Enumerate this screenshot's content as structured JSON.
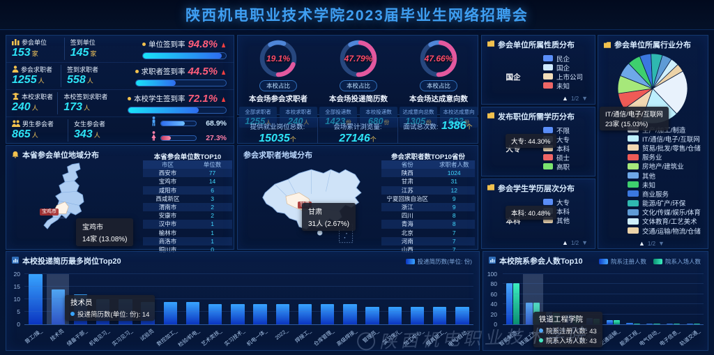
{
  "header": {
    "title": "陕西机电职业技术学院2023届毕业生网络招聘会"
  },
  "watermark": "陕西机电职业技术学院",
  "accent_colors": {
    "number_cyan": "#2de4f6",
    "unit_yellow": "#eec35a",
    "rate_pink": "#ff5d7a",
    "title_blue": "#3f9ff2"
  },
  "stats": {
    "rows": [
      {
        "icon": "org-icon",
        "label_a": "参会单位",
        "value_a": "153",
        "unit_a": "家",
        "label_b": "签到单位",
        "value_b": "145",
        "unit_b": "家",
        "rate_label": "单位签到率",
        "rate_text": "94.8%",
        "rate_pct": 94.8
      },
      {
        "icon": "person-icon",
        "label_a": "参会求职者",
        "value_a": "1255",
        "unit_a": "人",
        "label_b": "签到求职者",
        "value_b": "558",
        "unit_b": "人",
        "rate_label": "求职者签到率",
        "rate_text": "44.5%",
        "rate_pct": 44.5
      },
      {
        "icon": "graduate-icon",
        "label_a": "本校求职者",
        "value_a": "240",
        "unit_a": "人",
        "label_b": "本校签到求职者",
        "value_b": "173",
        "unit_b": "人",
        "rate_label": "本校学生签到率",
        "rate_text": "72.1%",
        "rate_pct": 72.1
      },
      {
        "icon": "people-icon",
        "label_a": "男生参会者",
        "value_a": "865",
        "unit_a": "人",
        "label_b": "女生参会者",
        "value_b": "343",
        "unit_b": "人",
        "male_text": "68.9%",
        "male_pct": 68.9,
        "female_text": "27.3%",
        "female_pct": 27.3
      }
    ]
  },
  "totals": {
    "items": [
      {
        "label": "提供就业岗位总数:",
        "value": "15035",
        "unit": "个"
      },
      {
        "label": "会场累计浏览量:",
        "value": "27146",
        "unit": "个"
      },
      {
        "label": "面试总次数:",
        "value": "1386",
        "unit": "个"
      }
    ]
  },
  "chart_data": [
    {
      "type": "gauge",
      "pct_text": "19.1%",
      "value": 19.1,
      "badge": "本校占比",
      "title": "本会场参会求职者",
      "cells": [
        {
          "label": "全部求职者",
          "value": "1255",
          "unit": "人"
        },
        {
          "label": "本校求职者",
          "value": "240",
          "unit": "人"
        }
      ]
    },
    {
      "type": "gauge",
      "pct_text": "47.79%",
      "value": 47.79,
      "badge": "本校占比",
      "title": "本会场投递简历数",
      "cells": [
        {
          "label": "全部投递数",
          "value": "1423",
          "unit": "份"
        },
        {
          "label": "本校投递数",
          "value": "680",
          "unit": "份"
        }
      ]
    },
    {
      "type": "gauge",
      "pct_text": "47.66%",
      "value": 47.66,
      "badge": "本校占比",
      "title": "本会场达成意向数",
      "cells": [
        {
          "label": "达成意向总数",
          "value": "1305",
          "unit": "份"
        },
        {
          "label": "本校达成意向",
          "value": "622",
          "unit": "份"
        }
      ]
    },
    {
      "type": "pie",
      "variant": "donut",
      "title": "参会单位所属性质分布",
      "center_label": "国企",
      "legend_position": "right",
      "pager": "1/2",
      "series": [
        {
          "name": "民企",
          "value": 78,
          "color": "#5b8ff9"
        },
        {
          "name": "国企",
          "value": 12,
          "color": "#cfeaff"
        },
        {
          "name": "上市公司",
          "value": 6,
          "color": "#f3ddb8"
        },
        {
          "name": "未知",
          "value": 4,
          "color": "#ee6666"
        }
      ]
    },
    {
      "type": "pie",
      "variant": "donut",
      "title": "发布职位所需学历分布",
      "center_label": "大专",
      "tooltip": "大专: 44.30%",
      "legend_position": "right",
      "series": [
        {
          "name": "不限",
          "value": 24,
          "color": "#5b8ff9"
        },
        {
          "name": "大专",
          "value": 44.3,
          "color": "#c6ecff"
        },
        {
          "name": "本科",
          "value": 21,
          "color": "#f3ddb8"
        },
        {
          "name": "硕士",
          "value": 2,
          "color": "#ee6666"
        },
        {
          "name": "高职",
          "value": 8.7,
          "color": "#7be36e"
        }
      ]
    },
    {
      "type": "pie",
      "variant": "donut",
      "title": "参会学生学历层次分布",
      "center_label": "本科",
      "tooltip": "本科: 40.48%",
      "legend_position": "right",
      "pager": "1/2",
      "series": [
        {
          "name": "大专",
          "value": 42,
          "color": "#5b8ff9"
        },
        {
          "name": "本科",
          "value": 40.48,
          "color": "#cfeaff"
        },
        {
          "name": "其他",
          "value": 17.52,
          "color": "#f3ddb8"
        }
      ]
    },
    {
      "type": "pie",
      "title": "参会单位所属行业分布",
      "units": "家",
      "pager": "1/2",
      "tooltip": {
        "line1": "IT/通信/电子/互联网",
        "line2": "23家 (15.03%)"
      },
      "series": [
        {
          "name": "生产/加工/制造",
          "value": 28,
          "color": "#e8f2fc"
        },
        {
          "name": "IT/通信/电子/互联网",
          "value": 23,
          "color": "#bdeffd"
        },
        {
          "name": "贸易/批发/零售/仓储",
          "value": 13,
          "color": "#f2d8b2"
        },
        {
          "name": "服务业",
          "value": 10,
          "color": "#ef5b56"
        },
        {
          "name": "房地产/建筑业",
          "value": 11,
          "color": "#a6e87a"
        },
        {
          "name": "其他",
          "value": 9,
          "color": "#6ea8e8"
        },
        {
          "name": "未知",
          "value": 8,
          "color": "#3ecf6e"
        },
        {
          "name": "商业服务",
          "value": 7,
          "color": "#3b78e0"
        },
        {
          "name": "能源/矿产/环保",
          "value": 7,
          "color": "#2fb8b0"
        },
        {
          "name": "文化/传媒/娱乐/体育",
          "value": 6,
          "color": "#5e9bd6"
        },
        {
          "name": "文体教育/工艺美术",
          "value": 5,
          "color": "#cfeffc"
        },
        {
          "name": "交通/运输/物流/仓储",
          "value": 5,
          "color": "#ecd3a8"
        }
      ]
    },
    {
      "type": "table",
      "panel_title": "本省参会单位地域分布",
      "table_title": "本省参会单位数TOP10",
      "columns": [
        "市区",
        "单位数"
      ],
      "map_label": "宝鸡市",
      "tooltip": {
        "line1": "宝鸡市",
        "line2": "14家 (13.08%)"
      },
      "rows": [
        [
          "西安市",
          "77"
        ],
        [
          "宝鸡市",
          "14"
        ],
        [
          "咸阳市",
          "6"
        ],
        [
          "西咸新区",
          "3"
        ],
        [
          "渭南市",
          "2"
        ],
        [
          "安康市",
          "2"
        ],
        [
          "汉中市",
          "1"
        ],
        [
          "榆林市",
          "1"
        ],
        [
          "商洛市",
          "1"
        ],
        [
          "铜川市",
          "0"
        ]
      ]
    },
    {
      "type": "table",
      "panel_title": "参会求职者地域分布",
      "table_title": "参会求职者数TOP10省份",
      "columns": [
        "省份",
        "求职者人数"
      ],
      "map_label": "甘肃",
      "tooltip": {
        "line1": "甘肃",
        "line2": "31人 (2.67%)"
      },
      "rows": [
        [
          "陕西",
          "1024"
        ],
        [
          "甘肃",
          "31"
        ],
        [
          "江苏",
          "12"
        ],
        [
          "宁夏回族自治区",
          "9"
        ],
        [
          "浙江",
          "9"
        ],
        [
          "四川",
          "8"
        ],
        [
          "青海",
          "8"
        ],
        [
          "北京",
          "7"
        ],
        [
          "河南",
          "7"
        ],
        [
          "山西",
          "7"
        ]
      ]
    },
    {
      "type": "bar",
      "title": "本校投递简历最多岗位Top20",
      "legend": [
        "投递简历数(单位: 份)"
      ],
      "ylim": [
        0,
        20
      ],
      "yticks": [
        0,
        5,
        10,
        15,
        20
      ],
      "highlight_index": 1,
      "tooltip": {
        "title": "技术员",
        "label": "投递简历数(单位: 份)",
        "value": "14"
      },
      "bar_color_top": "#38a4ff",
      "bar_color_bottom": "#0b35c0",
      "categories": [
        "普工/操_",
        "技术员",
        "储备干部_",
        "机电见习_",
        "实习见习_",
        "试验员",
        "数控加工_",
        "检验/机电_",
        "艺术类技_",
        "实习技术_",
        "机电一体_",
        "2022_",
        "焊接工_",
        "仓库管理_",
        "高级焊接_",
        "管理员_",
        "实习生/(_",
        "加工中心_",
        "模具钳工_",
        "电气/自动_"
      ],
      "values": [
        20,
        14,
        12,
        10,
        10,
        9,
        9,
        9,
        8,
        8,
        8,
        8,
        8,
        8,
        8,
        7,
        7,
        7,
        7,
        7
      ]
    },
    {
      "type": "bar",
      "variant": "grouped",
      "title": "本校院系参会人数Top10",
      "ylim": [
        0,
        100
      ],
      "yticks": [
        0,
        20,
        40,
        60,
        80,
        100
      ],
      "highlight_index": 1,
      "tooltip": {
        "title": "铁道工程学院",
        "lines": [
          {
            "label": "院系注册人数",
            "value": "43"
          },
          {
            "label": "院系入场人数",
            "value": "43"
          }
        ]
      },
      "categories": [
        "智能制造_",
        "铁道工程_",
        "机电工程_",
        "传媒艺术_",
        "经济管理_",
        "交通运输_",
        "能源工程_",
        "电气自动_",
        "电子信息_",
        "轨道交通_"
      ],
      "series": [
        {
          "name": "院系注册人数",
          "color_top": "#47a8ff",
          "color_bottom": "#0d3fc8",
          "values": [
            82,
            43,
            25,
            20,
            13,
            9,
            3,
            2,
            1,
            1
          ]
        },
        {
          "name": "院系入场人数",
          "color_top": "#3cf0c0",
          "color_bottom": "#0a8f70",
          "values": [
            82,
            43,
            22,
            18,
            11,
            9,
            2,
            2,
            1,
            1
          ]
        }
      ]
    }
  ],
  "pager_glyphs": {
    "up": "▲",
    "num": "1/2",
    "down": "▼"
  }
}
